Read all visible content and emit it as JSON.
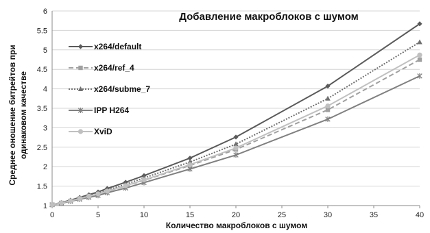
{
  "chart_data": {
    "type": "line",
    "title": "Добавление макроблоков с шумом",
    "xlabel": "Количество макроблоков с шумом",
    "ylabel_lines": [
      "Среднее оношение битрейтов при",
      "одинаковом качестве"
    ],
    "xlim": [
      0,
      40
    ],
    "ylim": [
      1,
      6
    ],
    "xticks": [
      0,
      5,
      10,
      15,
      20,
      25,
      30,
      35,
      40
    ],
    "yticks": [
      1,
      1.5,
      2,
      2.5,
      3,
      3.5,
      4,
      4.5,
      5,
      5.5,
      6
    ],
    "xtick_labels": [
      "0",
      "5",
      "10",
      "15",
      "20",
      "25",
      "30",
      "35",
      "40"
    ],
    "ytick_labels": [
      "1",
      "1.5",
      "2",
      "2.5",
      "3",
      "3.5",
      "4",
      "4.5",
      "5",
      "5.5",
      "6"
    ],
    "grid": "horizontal",
    "legend_position": "top-left",
    "x": [
      0,
      1,
      2,
      3,
      4,
      5,
      6,
      8,
      10,
      15,
      20,
      30,
      40
    ],
    "series": [
      {
        "name": "x264/default",
        "color": "#5a5a5a",
        "marker": "diamond",
        "dash": "solid",
        "values": [
          1.02,
          1.08,
          1.14,
          1.21,
          1.28,
          1.35,
          1.44,
          1.6,
          1.77,
          2.22,
          2.76,
          4.07,
          5.67
        ]
      },
      {
        "name": "x264/ref_4",
        "color": "#a0a0a0",
        "marker": "square",
        "dash": "dashed",
        "values": [
          1.02,
          1.07,
          1.12,
          1.18,
          1.24,
          1.3,
          1.37,
          1.5,
          1.65,
          2.03,
          2.44,
          3.46,
          4.75
        ]
      },
      {
        "name": "x264/subme_7",
        "color": "#707070",
        "marker": "triangle",
        "dash": "dotted",
        "values": [
          1.02,
          1.07,
          1.13,
          1.19,
          1.26,
          1.32,
          1.4,
          1.55,
          1.71,
          2.12,
          2.58,
          3.75,
          5.2
        ]
      },
      {
        "name": "IPP H264",
        "color": "#808080",
        "marker": "star",
        "dash": "solid",
        "values": [
          1.02,
          1.06,
          1.11,
          1.16,
          1.21,
          1.26,
          1.33,
          1.45,
          1.59,
          1.94,
          2.3,
          3.22,
          4.33
        ]
      },
      {
        "name": "XviD",
        "color": "#c0c0c0",
        "marker": "circle",
        "dash": "solid",
        "values": [
          1.02,
          1.07,
          1.12,
          1.18,
          1.24,
          1.3,
          1.37,
          1.51,
          1.66,
          2.05,
          2.48,
          3.56,
          4.87
        ]
      }
    ]
  }
}
